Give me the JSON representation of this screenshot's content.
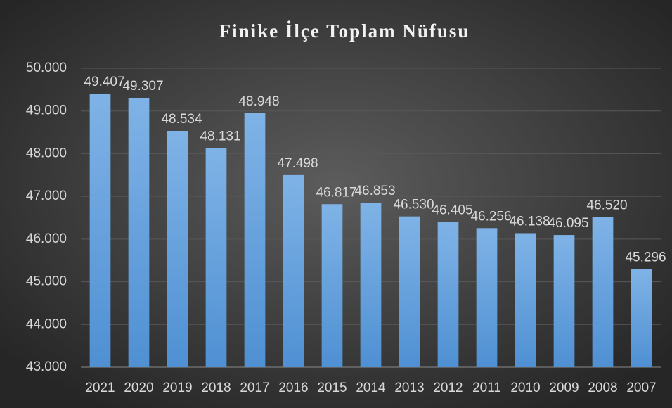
{
  "chart_data": {
    "type": "bar",
    "title": "Finike İlçe Toplam Nüfusu",
    "categories": [
      "2021",
      "2020",
      "2019",
      "2018",
      "2017",
      "2016",
      "2015",
      "2014",
      "2013",
      "2012",
      "2011",
      "2010",
      "2009",
      "2008",
      "2007"
    ],
    "values": [
      49407,
      49307,
      48534,
      48131,
      48948,
      47498,
      46817,
      46853,
      46530,
      46405,
      46256,
      46138,
      46095,
      46520,
      45296
    ],
    "value_labels": [
      "49.407",
      "49.307",
      "48.534",
      "48.131",
      "48.948",
      "47.498",
      "46.817",
      "46.853",
      "46.530",
      "46.405",
      "46.256",
      "46.138",
      "46.095",
      "46.520",
      "45.296"
    ],
    "color": "#5b9bd5",
    "ylim": [
      43000,
      50000
    ],
    "yticks": [
      {
        "value": 43000,
        "label": "43.000"
      },
      {
        "value": 44000,
        "label": "44.000"
      },
      {
        "value": 45000,
        "label": "45.000"
      },
      {
        "value": 46000,
        "label": "46.000"
      },
      {
        "value": 47000,
        "label": "47.000"
      },
      {
        "value": 48000,
        "label": "48.000"
      },
      {
        "value": 49000,
        "label": "49.000"
      },
      {
        "value": 50000,
        "label": "50.000"
      }
    ],
    "grid": true
  }
}
